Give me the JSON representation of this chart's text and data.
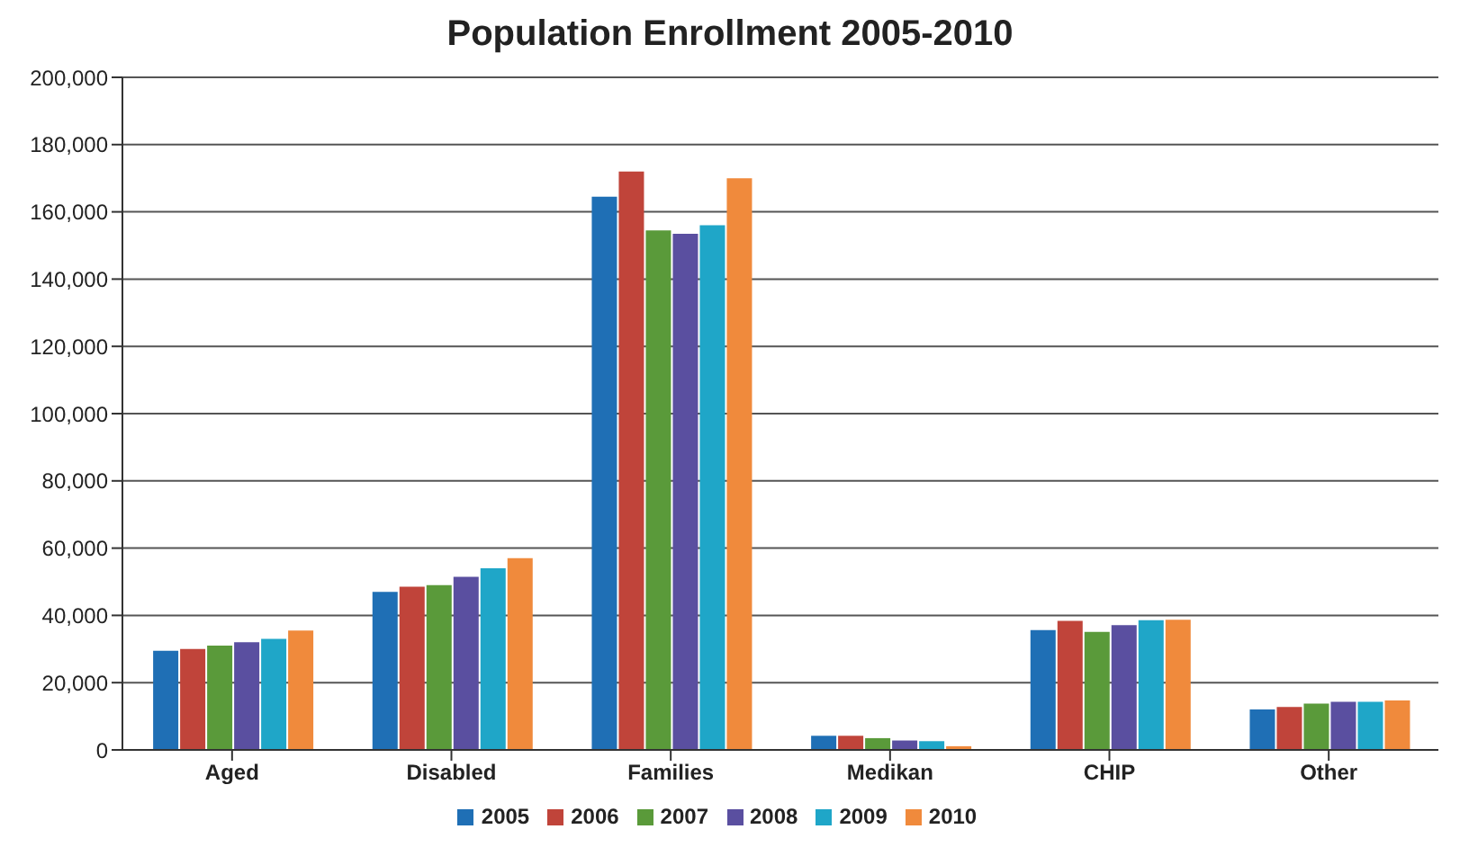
{
  "chart_data": {
    "type": "bar",
    "title": "Population Enrollment 2005-2010",
    "categories": [
      "Aged",
      "Disabled",
      "Families",
      "Medikan",
      "CHIP",
      "Other"
    ],
    "series": [
      {
        "name": "2005",
        "color": "#1f6fb5",
        "values": [
          29500,
          47000,
          164500,
          4200,
          35600,
          12000
        ]
      },
      {
        "name": "2006",
        "color": "#c0443a",
        "values": [
          30000,
          48500,
          172000,
          4200,
          38400,
          12800
        ]
      },
      {
        "name": "2007",
        "color": "#5a9a3a",
        "values": [
          31000,
          49000,
          154500,
          3500,
          35100,
          13800
        ]
      },
      {
        "name": "2008",
        "color": "#5a4fa0",
        "values": [
          32000,
          51500,
          153500,
          2800,
          37100,
          14300
        ]
      },
      {
        "name": "2009",
        "color": "#1fa6c8",
        "values": [
          33000,
          54000,
          156000,
          2600,
          38600,
          14300
        ]
      },
      {
        "name": "2010",
        "color": "#f08a3c",
        "values": [
          35500,
          57000,
          170000,
          1100,
          38700,
          14700
        ]
      }
    ],
    "ylim": [
      0,
      200000
    ],
    "yticks": [
      0,
      {
        "value": 20000,
        "label": "20,000"
      },
      {
        "value": 40000,
        "label": "40,000"
      },
      {
        "value": 60000,
        "label": "60,000"
      },
      {
        "value": 80000,
        "label": "80,000"
      },
      {
        "value": 100000,
        "label": "100,000"
      },
      {
        "value": 120000,
        "label": "120,000"
      },
      {
        "value": 140000,
        "label": "140,000"
      },
      {
        "value": 160000,
        "label": "160,000"
      },
      {
        "value": 180000,
        "label": "180,000"
      },
      {
        "value": 200000,
        "label": "200,000"
      }
    ],
    "grid": "y",
    "legend": "bottom"
  }
}
